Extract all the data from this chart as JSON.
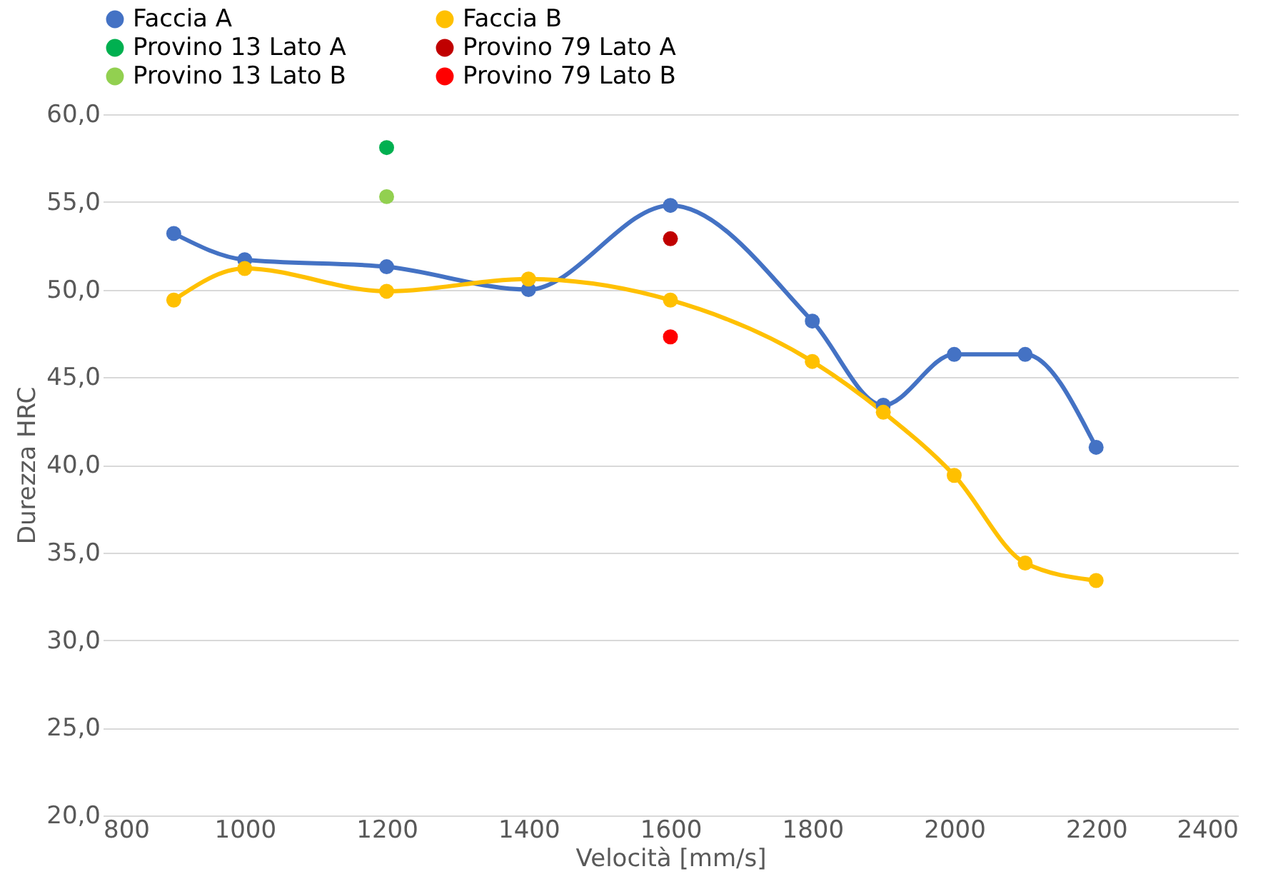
{
  "chart_data": {
    "type": "line",
    "xlabel": "Velocità [mm/s]",
    "ylabel": "Durezza HRC",
    "xlim": [
      800,
      2400
    ],
    "xticks": [
      800,
      1000,
      1200,
      1400,
      1600,
      1800,
      2000,
      2200,
      2400
    ],
    "ylim": [
      20,
      60
    ],
    "yticks": [
      {
        "value": 20,
        "label": "20,0"
      },
      {
        "value": 25,
        "label": "25,0"
      },
      {
        "value": 30,
        "label": "30,0"
      },
      {
        "value": 35,
        "label": "35,0"
      },
      {
        "value": 40,
        "label": "40,0"
      },
      {
        "value": 45,
        "label": "45,0"
      },
      {
        "value": 50,
        "label": "50,0"
      },
      {
        "value": 55,
        "label": "55,0"
      },
      {
        "value": 60,
        "label": "60,0"
      }
    ],
    "grid": "y",
    "legend": "top",
    "marker": "circle",
    "series": [
      {
        "name": "Faccia A",
        "color": "#4472c4",
        "x": [
          900,
          1000,
          1200,
          1400,
          1600,
          1800,
          1900,
          2000,
          2100,
          2200
        ],
        "values": [
          53.2,
          51.7,
          51.3,
          50.0,
          54.8,
          48.2,
          43.4,
          46.3,
          46.3,
          41.0
        ]
      },
      {
        "name": "Faccia B",
        "color": "#ffc000",
        "x": [
          900,
          1000,
          1200,
          1400,
          1600,
          1800,
          1900,
          2000,
          2100,
          2200
        ],
        "values": [
          49.4,
          51.2,
          49.9,
          50.6,
          49.4,
          45.9,
          43.0,
          39.4,
          34.4,
          33.4
        ]
      },
      {
        "name": "Provino 13 Lato A",
        "type": "scatter",
        "color": "#00b050",
        "x": [
          1200
        ],
        "values": [
          58.1
        ]
      },
      {
        "name": "Provino 79 Lato A",
        "type": "scatter",
        "color": "#c00000",
        "x": [
          1600
        ],
        "values": [
          52.9
        ]
      },
      {
        "name": "Provino 13 Lato B",
        "type": "scatter",
        "color": "#92d050",
        "x": [
          1200
        ],
        "values": [
          55.3
        ]
      },
      {
        "name": "Provino 79 Lato B",
        "type": "scatter",
        "color": "#ff0000",
        "x": [
          1600
        ],
        "values": [
          47.3
        ]
      }
    ]
  }
}
